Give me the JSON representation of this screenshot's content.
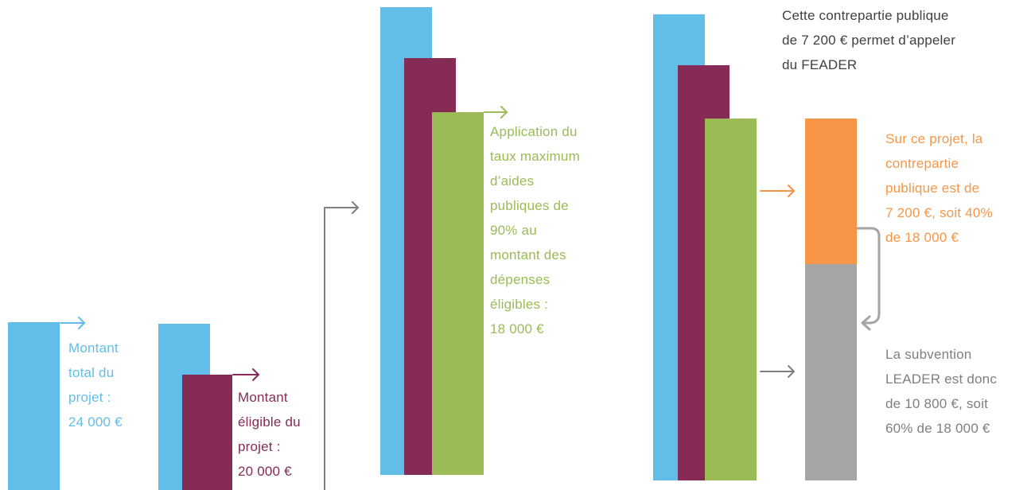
{
  "colors": {
    "blue": "#62bde9",
    "purple": "#862b56",
    "green": "#9bbb56",
    "orange": "#f79646",
    "grey": "#a5a5a5",
    "arrow_grey": "#7f7f7f",
    "text_dark": "#404040"
  },
  "labels": {
    "total": "Montant\ntotal du\nprojet :\n24 000 €",
    "eligible": "Montant\néligible du\nprojet :\n20 000 €",
    "rate": "Application du\ntaux maximum\nd’aides\npubliques de\n90% au\nmontant des\ndépenses\néligibles :\n18 000 €",
    "top_note": "Cette contrepartie publique\nde 7 200 € permet d’appeler\ndu FEADER",
    "public_share": "Sur ce projet, la\ncontrepartie\npublique est de\n7 200 €, soit 40%\nde 18 000 €",
    "leader_share": "La subvention\nLEADER est donc\nde 10 800 €, soit\n60% de 18 000 €"
  }
}
